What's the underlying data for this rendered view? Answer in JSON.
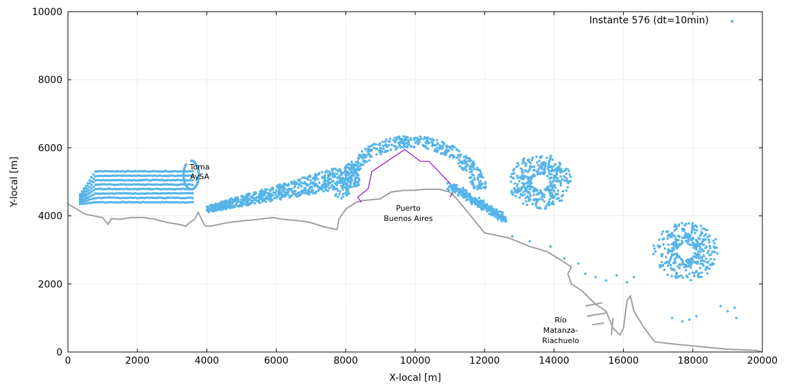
{
  "chart_data": {
    "type": "scatter",
    "title": "",
    "xlabel": "X-local [m]",
    "ylabel": "Y-local [m]",
    "xlim": [
      0,
      20000
    ],
    "ylim": [
      0,
      10000
    ],
    "xticks": [
      0,
      2000,
      4000,
      6000,
      8000,
      10000,
      12000,
      14000,
      16000,
      18000,
      20000
    ],
    "yticks": [
      0,
      2000,
      4000,
      6000,
      8000,
      10000
    ],
    "xtick_labels": [
      "0",
      "2000",
      "4000",
      "6000",
      "8000",
      "10000",
      "12000",
      "14000",
      "16000",
      "18000",
      "20000"
    ],
    "ytick_labels": [
      "0",
      "2000",
      "4000",
      "6000",
      "8000",
      "10000"
    ],
    "grid": true,
    "legend_position": "top-right",
    "series": [
      {
        "name": "Instante 576 (dt=10min)",
        "color": "#56b4e9",
        "sample_points": [
          [
            420,
            5380
          ],
          [
            900,
            4300
          ],
          [
            1400,
            4750
          ],
          [
            2500,
            4770
          ],
          [
            3400,
            5950
          ],
          [
            3700,
            5700
          ],
          [
            3900,
            4700
          ],
          [
            4300,
            4250
          ],
          [
            5000,
            4400
          ],
          [
            5600,
            4550
          ],
          [
            6500,
            4500
          ],
          [
            7200,
            4750
          ],
          [
            7800,
            5300
          ],
          [
            8400,
            5700
          ],
          [
            9000,
            6050
          ],
          [
            10000,
            6200
          ],
          [
            11000,
            5800
          ],
          [
            11700,
            4400
          ],
          [
            12500,
            3900
          ],
          [
            13300,
            5800
          ],
          [
            13600,
            4800
          ],
          [
            14200,
            5000
          ],
          [
            14800,
            2300
          ],
          [
            15800,
            2250
          ],
          [
            17200,
            3800
          ],
          [
            17700,
            2800
          ],
          [
            18600,
            2600
          ],
          [
            19200,
            1300
          ],
          [
            19150,
            9700
          ]
        ]
      }
    ],
    "annotations": [
      {
        "id": "toma",
        "lines": [
          "Toma",
          "AySA"
        ]
      },
      {
        "id": "puerto",
        "lines": [
          "Puerto",
          "Buenos Aires"
        ]
      },
      {
        "id": "rio",
        "lines": [
          "Río",
          "Matanza-",
          "Riachuelo"
        ]
      }
    ],
    "coastline_color": "#9e9e9e",
    "port_outline_color": "#9400d3"
  }
}
